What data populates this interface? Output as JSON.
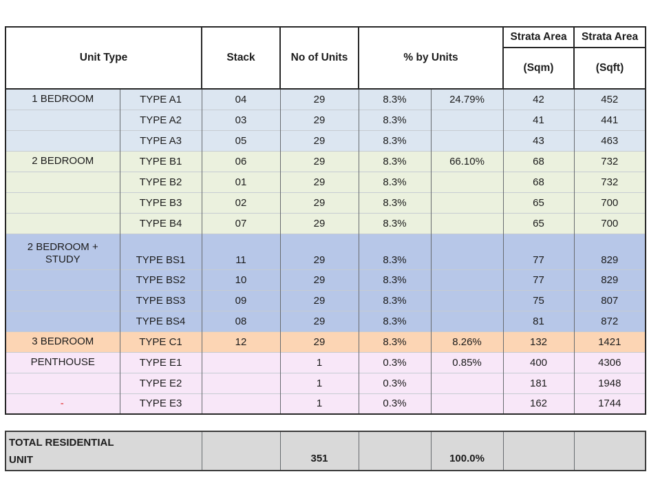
{
  "table": {
    "header": {
      "unit_type": "Unit Type",
      "stack": "Stack",
      "no_of_units": "No of Units",
      "pct_by_units": "% by Units",
      "strata_area_title": "Strata Area",
      "strata_area_sqm": "(Sqm)",
      "strata_area_sqft": "(Sqft)"
    },
    "rows": [
      {
        "category": "1 BEDROOM",
        "type": "TYPE A1",
        "stack": "04",
        "units": "29",
        "pct": "8.3%",
        "group_pct": "24.79%",
        "sqm": "42",
        "sqft": "452",
        "section": "one_bedroom"
      },
      {
        "category": "",
        "type": "TYPE A2",
        "stack": "03",
        "units": "29",
        "pct": "8.3%",
        "group_pct": "",
        "sqm": "41",
        "sqft": "441",
        "section": "one_bedroom"
      },
      {
        "category": "",
        "type": "TYPE A3",
        "stack": "05",
        "units": "29",
        "pct": "8.3%",
        "group_pct": "",
        "sqm": "43",
        "sqft": "463",
        "section": "one_bedroom"
      },
      {
        "category": "2 BEDROOM",
        "type": "TYPE B1",
        "stack": "06",
        "units": "29",
        "pct": "8.3%",
        "group_pct": "66.10%",
        "sqm": "68",
        "sqft": "732",
        "section": "two_bedroom"
      },
      {
        "category": "",
        "type": "TYPE B2",
        "stack": "01",
        "units": "29",
        "pct": "8.3%",
        "group_pct": "",
        "sqm": "68",
        "sqft": "732",
        "section": "two_bedroom"
      },
      {
        "category": "",
        "type": "TYPE B3",
        "stack": "02",
        "units": "29",
        "pct": "8.3%",
        "group_pct": "",
        "sqm": "65",
        "sqft": "700",
        "section": "two_bedroom"
      },
      {
        "category": "",
        "type": "TYPE B4",
        "stack": "07",
        "units": "29",
        "pct": "8.3%",
        "group_pct": "",
        "sqm": "65",
        "sqft": "700",
        "section": "two_bedroom"
      },
      {
        "category": "2 BEDROOM +\nSTUDY",
        "type": "TYPE BS1",
        "stack": "11",
        "units": "29",
        "pct": "8.3%",
        "group_pct": "",
        "sqm": "77",
        "sqft": "829",
        "section": "two_bedroom_study",
        "tall": true
      },
      {
        "category": "",
        "type": "TYPE BS2",
        "stack": "10",
        "units": "29",
        "pct": "8.3%",
        "group_pct": "",
        "sqm": "77",
        "sqft": "829",
        "section": "two_bedroom_study"
      },
      {
        "category": "",
        "type": "TYPE BS3",
        "stack": "09",
        "units": "29",
        "pct": "8.3%",
        "group_pct": "",
        "sqm": "75",
        "sqft": "807",
        "section": "two_bedroom_study"
      },
      {
        "category": "",
        "type": "TYPE BS4",
        "stack": "08",
        "units": "29",
        "pct": "8.3%",
        "group_pct": "",
        "sqm": "81",
        "sqft": "872",
        "section": "two_bedroom_study"
      },
      {
        "category": "3 BEDROOM",
        "type": "TYPE C1",
        "stack": "12",
        "units": "29",
        "pct": "8.3%",
        "group_pct": "8.26%",
        "sqm": "132",
        "sqft": "1421",
        "section": "three_bedroom"
      },
      {
        "category": "PENTHOUSE",
        "type": "TYPE E1",
        "stack": "",
        "units": "1",
        "pct": "0.3%",
        "group_pct": "0.85%",
        "sqm": "400",
        "sqft": "4306",
        "section": "penthouse"
      },
      {
        "category": "",
        "type": "TYPE E2",
        "stack": "",
        "units": "1",
        "pct": "0.3%",
        "group_pct": "",
        "sqm": "181",
        "sqft": "1948",
        "section": "penthouse"
      },
      {
        "category": "-",
        "type": "TYPE E3",
        "stack": "",
        "units": "1",
        "pct": "0.3%",
        "group_pct": "",
        "sqm": "162",
        "sqft": "1744",
        "section": "penthouse",
        "category_red": true
      }
    ],
    "total": {
      "label": "TOTAL RESIDENTIAL\nUNIT",
      "units": "351",
      "pct": "100.0%"
    }
  },
  "colors": {
    "one_bedroom": "#dce6f1",
    "two_bedroom": "#ebf1de",
    "two_bedroom_study": "#b7c7e8",
    "three_bedroom": "#fcd5b4",
    "penthouse": "#f8e7f8",
    "total_row": "#d9d9d9",
    "red_dash": "#e02020"
  }
}
